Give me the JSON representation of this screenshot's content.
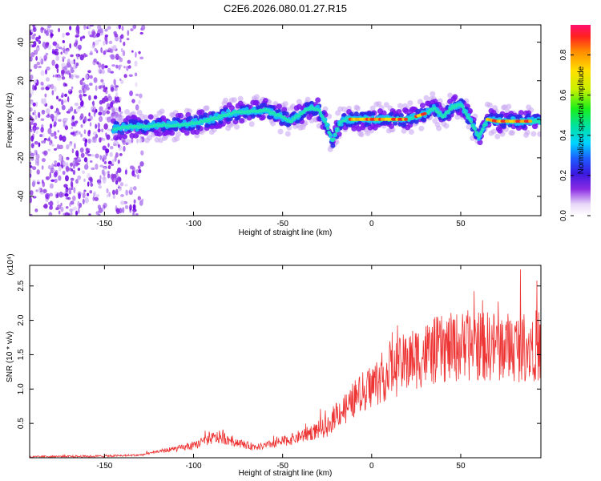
{
  "title": "C2E6.2026.080.01.27.R15",
  "chart_data": [
    {
      "type": "heatmap",
      "xlabel": "Height of straight line (km)",
      "ylabel": "Frequency (Hz)",
      "xlim": [
        -192,
        95
      ],
      "ylim": [
        -50,
        49
      ],
      "xticks": [
        -150,
        -100,
        -50,
        0,
        50
      ],
      "yticks": [
        -40,
        -20,
        0,
        20,
        40
      ],
      "colorbar": {
        "label": "Normalized spectral amplitude",
        "range": [
          0,
          0.95
        ],
        "ticks": [
          0.0,
          0.2,
          0.4,
          0.6,
          0.8
        ],
        "colormap": "rainbow"
      },
      "ridge": {
        "x": [
          -145,
          -140,
          -130,
          -120,
          -110,
          -100,
          -90,
          -80,
          -70,
          -60,
          -50,
          -45,
          -40,
          -35,
          -30,
          -25,
          -22,
          -18,
          -15,
          -10,
          -5,
          0,
          10,
          20,
          30,
          35,
          40,
          45,
          50,
          55,
          60,
          65,
          70,
          80,
          90,
          95
        ],
        "y": [
          -5,
          -4,
          -4,
          -3,
          -3,
          -2,
          0,
          3,
          4,
          5,
          1,
          -1,
          3,
          6,
          5,
          -3,
          -12,
          -2,
          0,
          0,
          0,
          0,
          0,
          0,
          3,
          6,
          1,
          6,
          8,
          0,
          -9,
          0,
          -1,
          -1,
          -1,
          -1
        ]
      },
      "noise_region_x": [
        -192,
        -128
      ]
    },
    {
      "type": "line",
      "xlabel": "Height of straight line (km)",
      "ylabel": "SNR (10 * v/v)",
      "y_multiplier_label": "(x10⁴)",
      "xlim": [
        -192,
        95
      ],
      "ylim": [
        0,
        2.8
      ],
      "xticks": [
        -150,
        -100,
        -50,
        0,
        50
      ],
      "yticks": [
        0.5,
        1.0,
        1.5,
        2.0,
        2.5
      ],
      "series": [
        {
          "color": "#ee3333",
          "x": [
            -192,
            -180,
            -160,
            -140,
            -130,
            -125,
            -120,
            -115,
            -110,
            -105,
            -100,
            -95,
            -90,
            -85,
            -80,
            -75,
            -70,
            -65,
            -60,
            -55,
            -50,
            -45,
            -40,
            -35,
            -30,
            -25,
            -22,
            -20,
            -15,
            -10,
            -5,
            0,
            5,
            10,
            15,
            20,
            25,
            30,
            35,
            40,
            45,
            50,
            55,
            60,
            65,
            70,
            75,
            80,
            85,
            90,
            95
          ],
          "values": [
            0.01,
            0.02,
            0.02,
            0.03,
            0.04,
            0.06,
            0.09,
            0.11,
            0.13,
            0.15,
            0.17,
            0.23,
            0.28,
            0.3,
            0.26,
            0.22,
            0.18,
            0.16,
            0.17,
            0.21,
            0.24,
            0.27,
            0.31,
            0.36,
            0.4,
            0.44,
            0.55,
            0.65,
            0.7,
            0.85,
            0.95,
            1.05,
            1.15,
            1.25,
            1.32,
            1.4,
            1.46,
            1.5,
            1.55,
            1.58,
            1.6,
            1.62,
            1.63,
            1.64,
            1.62,
            1.63,
            1.62,
            1.6,
            1.62,
            1.64,
            1.63
          ]
        }
      ]
    }
  ]
}
